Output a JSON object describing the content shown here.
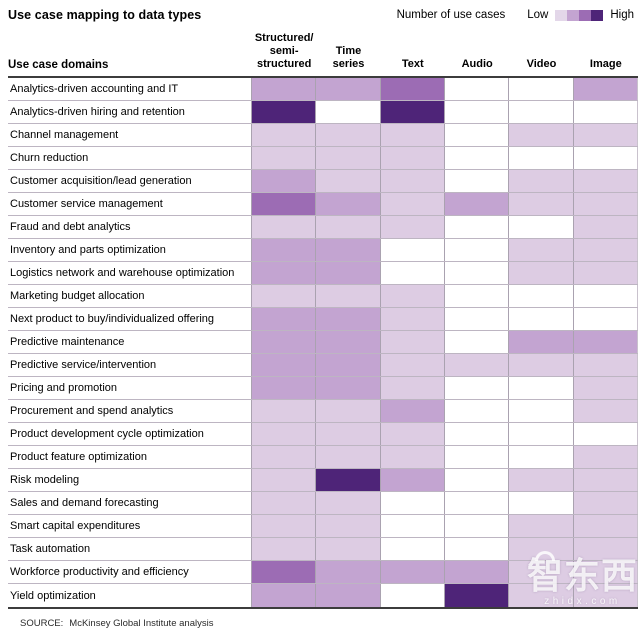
{
  "title": "Use case mapping to data types",
  "legend": {
    "label": "Number of use cases",
    "low_label": "Low",
    "high_label": "High",
    "colors": [
      "#e3d7e9",
      "#c3a4d1",
      "#9c6cb4",
      "#4e2478"
    ]
  },
  "palette": [
    "#ffffff",
    "#ddcce3",
    "#c3a4d1",
    "#9c6cb4",
    "#4e2478"
  ],
  "table": {
    "row_header": "Use case domains",
    "columns": [
      "Structured/\nsemi-\nstructured",
      "Time\nseries",
      "Text",
      "Audio",
      "Video",
      "Image"
    ]
  },
  "chart_data": {
    "type": "heatmap",
    "title": "Use case mapping to data types",
    "legend": {
      "label": "Number of use cases",
      "range": [
        "Low",
        "High"
      ]
    },
    "value_scale": "0 = none (white), 1 = low ... 4 = high",
    "columns": [
      "Structured/semi-structured",
      "Time series",
      "Text",
      "Audio",
      "Video",
      "Image"
    ],
    "rows": [
      "Analytics-driven accounting and IT",
      "Analytics-driven hiring and retention",
      "Channel management",
      "Churn reduction",
      "Customer acquisition/lead generation",
      "Customer service management",
      "Fraud and debt analytics",
      "Inventory and parts optimization",
      "Logistics network and warehouse optimization",
      "Marketing budget allocation",
      "Next product to buy/individualized offering",
      "Predictive maintenance",
      "Predictive service/intervention",
      "Pricing and promotion",
      "Procurement and spend analytics",
      "Product development cycle optimization",
      "Product feature optimization",
      "Risk modeling",
      "Sales and demand forecasting",
      "Smart capital expenditures",
      "Task automation",
      "Workforce productivity and efficiency",
      "Yield optimization"
    ],
    "values": [
      [
        2,
        2,
        3,
        0,
        0,
        2
      ],
      [
        4,
        0,
        4,
        0,
        0,
        0
      ],
      [
        1,
        1,
        1,
        0,
        1,
        1
      ],
      [
        1,
        1,
        1,
        0,
        0,
        0
      ],
      [
        2,
        1,
        1,
        0,
        1,
        1
      ],
      [
        3,
        2,
        1,
        2,
        1,
        1
      ],
      [
        1,
        1,
        1,
        0,
        0,
        1
      ],
      [
        2,
        2,
        0,
        0,
        1,
        1
      ],
      [
        2,
        2,
        0,
        0,
        1,
        1
      ],
      [
        1,
        1,
        1,
        0,
        0,
        0
      ],
      [
        2,
        2,
        1,
        0,
        0,
        0
      ],
      [
        2,
        2,
        1,
        0,
        2,
        2
      ],
      [
        2,
        2,
        1,
        1,
        1,
        1
      ],
      [
        2,
        2,
        1,
        0,
        0,
        1
      ],
      [
        1,
        1,
        2,
        0,
        0,
        1
      ],
      [
        1,
        1,
        1,
        0,
        0,
        0
      ],
      [
        1,
        1,
        1,
        0,
        0,
        1
      ],
      [
        1,
        4,
        2,
        0,
        1,
        1
      ],
      [
        1,
        1,
        0,
        0,
        0,
        1
      ],
      [
        1,
        1,
        0,
        0,
        1,
        1
      ],
      [
        1,
        1,
        0,
        0,
        1,
        1
      ],
      [
        3,
        2,
        2,
        2,
        1,
        1
      ],
      [
        2,
        2,
        0,
        4,
        1,
        1
      ]
    ]
  },
  "source": {
    "prefix": "SOURCE:",
    "text": "McKinsey Global Institute analysis"
  },
  "watermark": {
    "text": "智东西",
    "subtext": "zhidx.com"
  }
}
